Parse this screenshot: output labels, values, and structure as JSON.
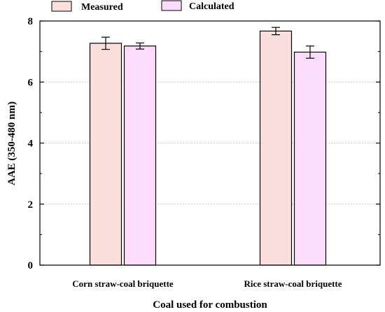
{
  "chart_data": {
    "type": "bar",
    "categories": [
      "Corn straw-coal briquette",
      "Rice straw-coal briquette"
    ],
    "series": [
      {
        "name": "Measured",
        "values": [
          7.27,
          7.67
        ],
        "errors": [
          0.2,
          0.12
        ],
        "color": "#fbdfdc"
      },
      {
        "name": "Calculated",
        "values": [
          7.18,
          6.98
        ],
        "errors": [
          0.1,
          0.2
        ],
        "color": "#fbdcfb"
      }
    ],
    "xlabel": "Coal used for combustion",
    "ylabel": "AAE  (350-480 nm)",
    "ylim": [
      0,
      8
    ],
    "yticks": [
      "0",
      "2",
      "4",
      "6",
      "8"
    ],
    "grid": "horizontal dotted",
    "legend": "top",
    "error_bars": true
  }
}
